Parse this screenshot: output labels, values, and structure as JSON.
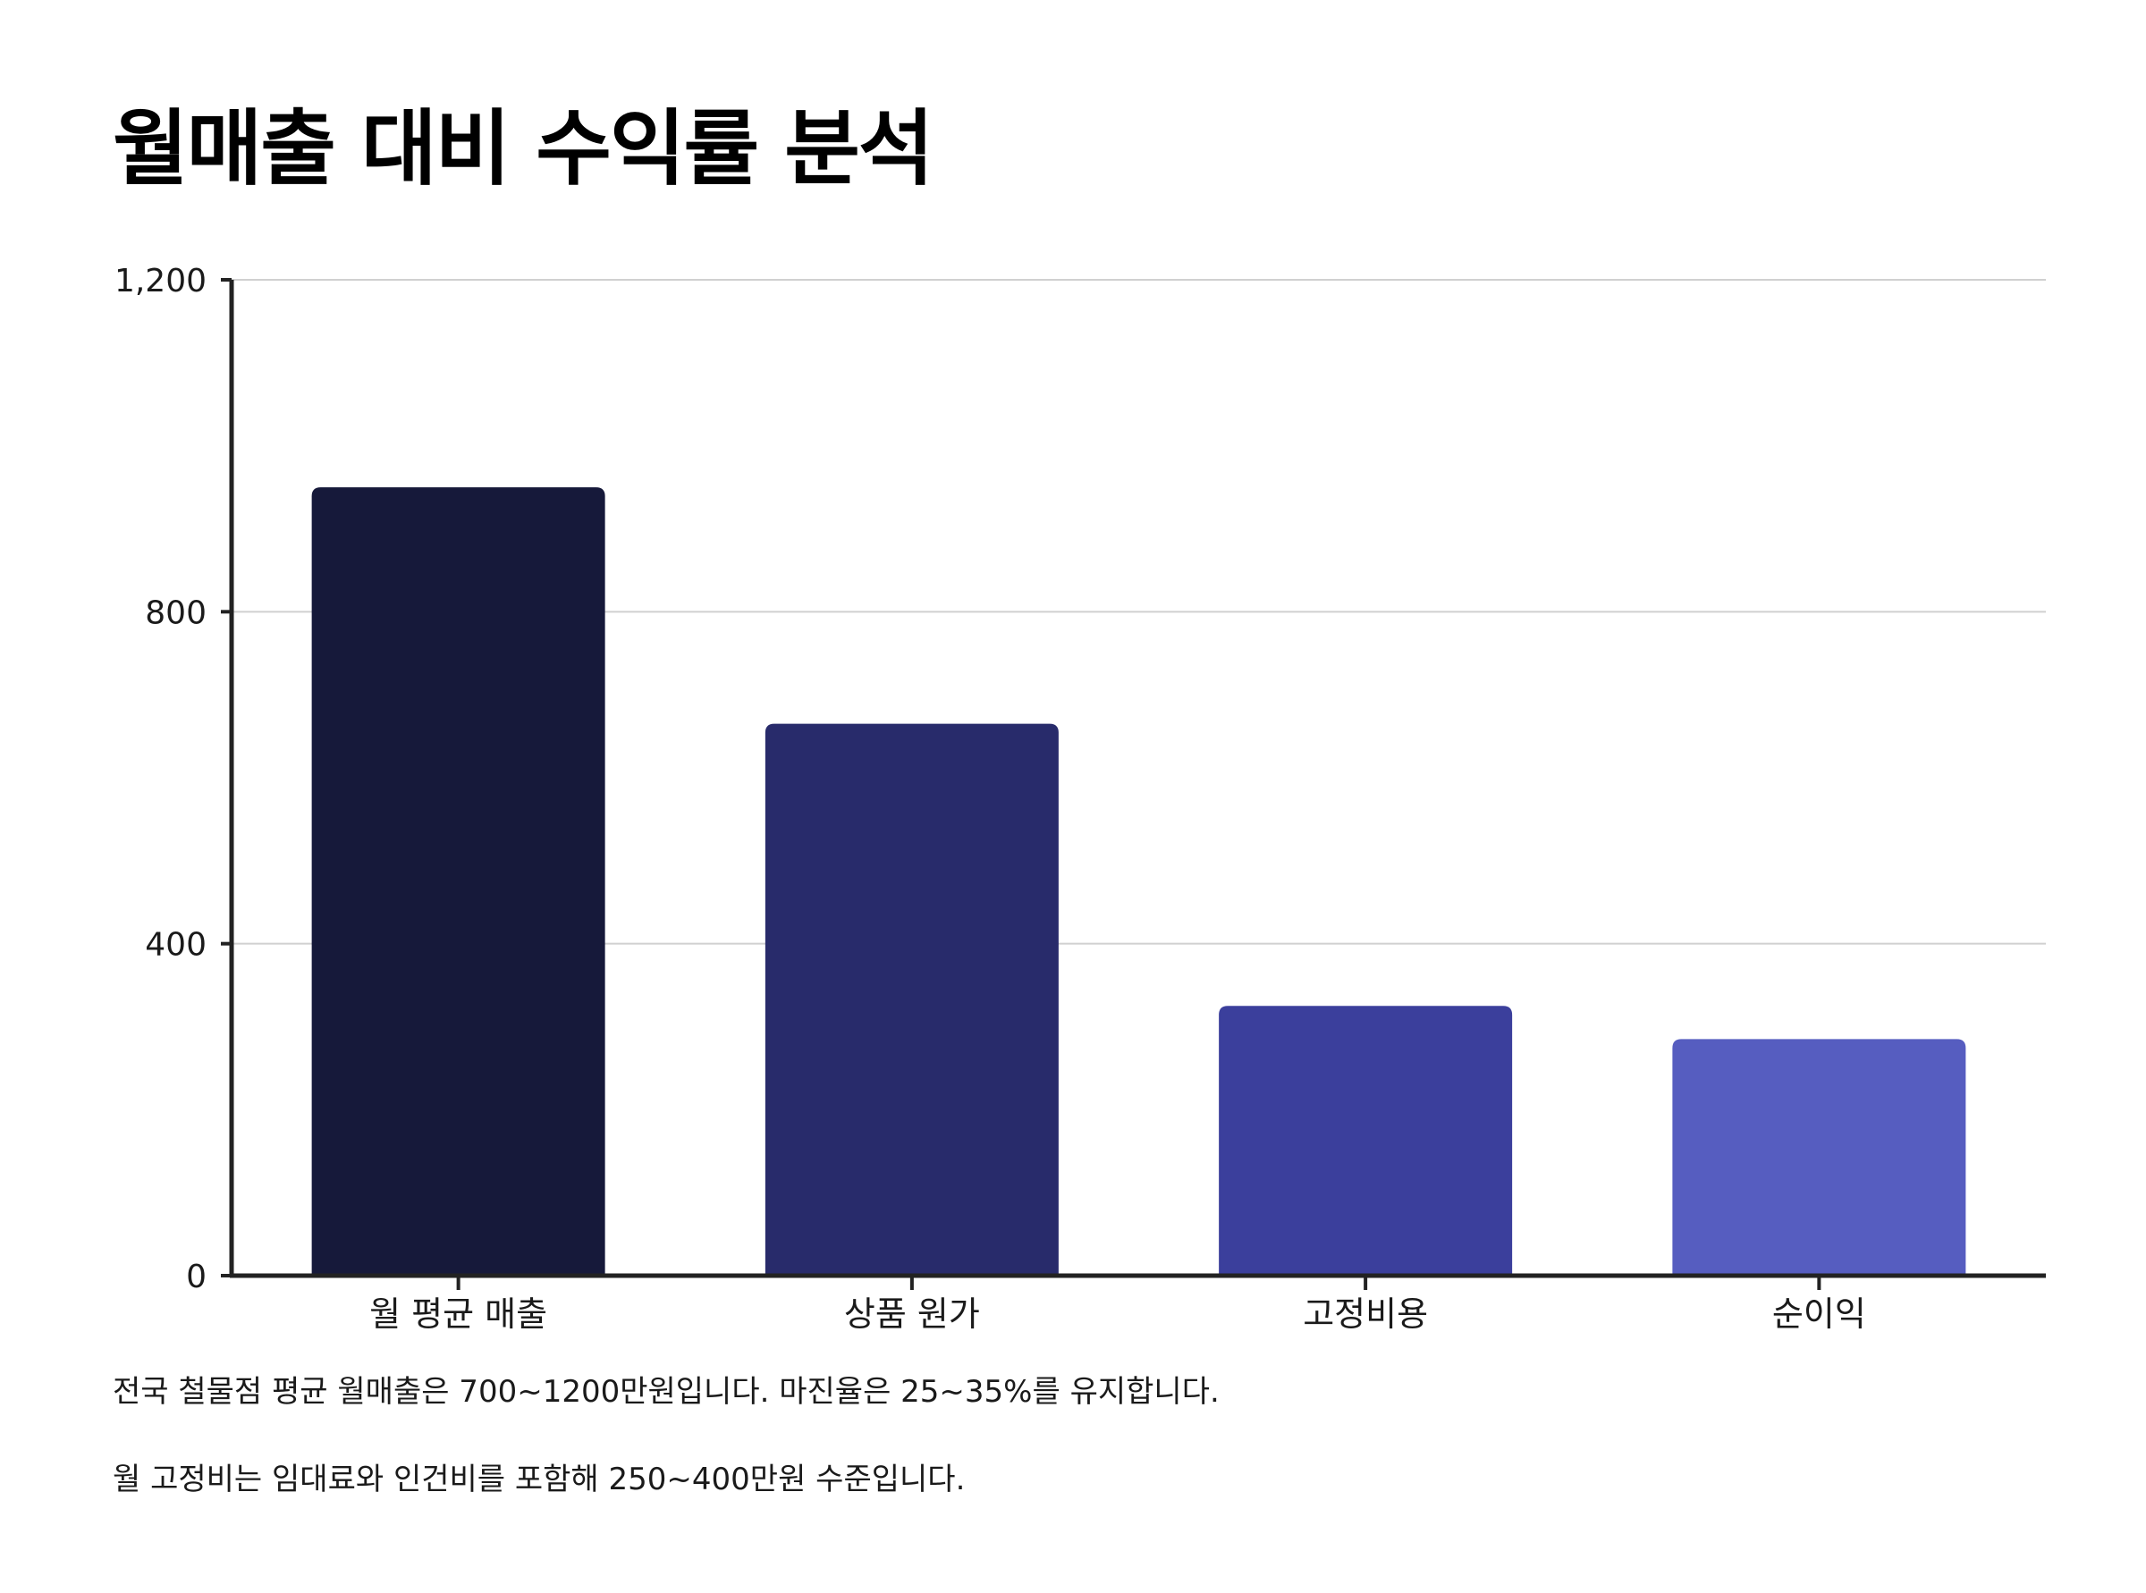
{
  "title": "월매출 대비 수익률 분석",
  "chart_data": {
    "type": "bar",
    "title": "월매출 대비 수익률 분석",
    "xlabel": "",
    "ylabel": "",
    "categories": [
      "월 평균 매출",
      "상품 원가",
      "고정비용",
      "순이익"
    ],
    "values": [
      950,
      665,
      325,
      285
    ],
    "colors": [
      "#16193a",
      "#282b6b",
      "#3b3f9c",
      "#565dc0"
    ],
    "ylim": [
      0,
      1200
    ],
    "yticks": [
      0,
      400,
      800,
      1200
    ],
    "ytick_labels": [
      "0",
      "400",
      "800",
      "1,200"
    ],
    "grid": true,
    "legend": "none"
  },
  "notes": [
    "전국 철물점 평균 월매출은 700~1200만원입니다. 마진율은 25~35%를 유지합니다.",
    "월 고정비는 임대료와 인건비를 포함해 250~400만원 수준입니다."
  ]
}
